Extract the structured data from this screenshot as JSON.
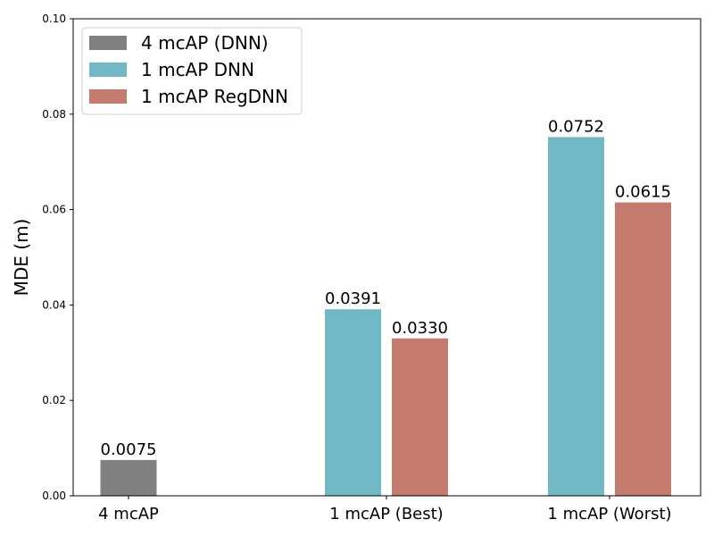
{
  "chart_data": {
    "type": "bar",
    "ylabel": "MDE (m)",
    "ylim": [
      0,
      0.1
    ],
    "yticks": [
      "0.00",
      "0.02",
      "0.04",
      "0.06",
      "0.08",
      "0.10"
    ],
    "categories": [
      "4 mcAP",
      "1 mcAP (Best)",
      "1 mcAP (Worst)"
    ],
    "series": [
      {
        "name": "4 mcAP (DNN)",
        "color": "#808080",
        "values": [
          0.0075,
          null,
          null
        ],
        "labels": [
          "0.0075",
          "",
          ""
        ]
      },
      {
        "name": "1 mcAP DNN",
        "color": "#70b8c4",
        "values": [
          null,
          0.0391,
          0.0752
        ],
        "labels": [
          "",
          "0.0391",
          "0.0752"
        ]
      },
      {
        "name": "1 mcAP RegDNN",
        "color": "#c47b6e",
        "values": [
          null,
          0.033,
          0.0615
        ],
        "labels": [
          "",
          "0.0330",
          "0.0615"
        ]
      }
    ],
    "legend_position": "top-left",
    "grid": false
  }
}
